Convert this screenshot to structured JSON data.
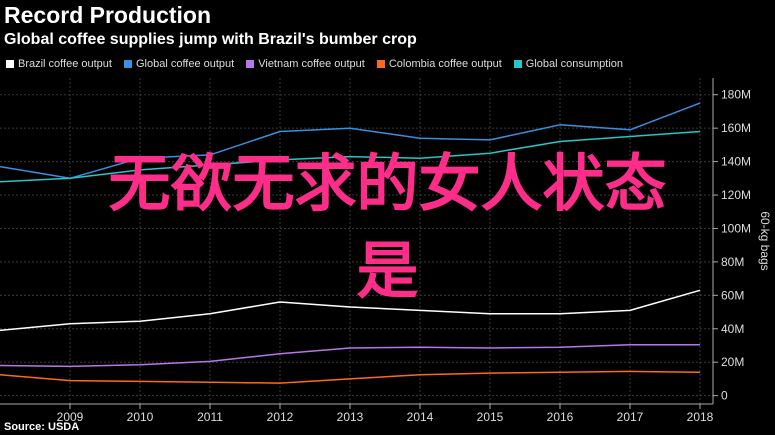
{
  "header": {
    "title": "Record Production",
    "subtitle": "Global coffee supplies jump with Brazil's bumber crop"
  },
  "footer": {
    "source": "Source: USDA"
  },
  "overlay": {
    "line1": "无欲无求的女人状态",
    "line2": "是"
  },
  "chart_data": {
    "type": "line",
    "x": [
      "2008",
      "2009",
      "2010",
      "2011",
      "2012",
      "2013",
      "2014",
      "2015",
      "2016",
      "2017",
      "2018"
    ],
    "ylabel": "60-kg bags",
    "ylim": [
      -5,
      190
    ],
    "yticks": [
      0,
      20,
      40,
      60,
      80,
      100,
      120,
      140,
      160,
      180
    ],
    "ytick_labels": [
      "0",
      "20M",
      "40M",
      "60M",
      "80M",
      "100M",
      "120M",
      "140M",
      "160M",
      "180M"
    ],
    "xtick_labels": [
      "2009",
      "2010",
      "2011",
      "2012",
      "2013",
      "2014",
      "2015",
      "2016",
      "2017",
      "2018"
    ],
    "legend_position": "top-left",
    "grid": true,
    "series": [
      {
        "name": "Brazil coffee output",
        "color": "#ffffff",
        "values": [
          39,
          43,
          44.5,
          49,
          56,
          53,
          51,
          49,
          49,
          51,
          63
        ]
      },
      {
        "name": "Global coffee output",
        "color": "#3a8fe0",
        "values": [
          137,
          130,
          142,
          144,
          158,
          160,
          154,
          153,
          162,
          159,
          175
        ]
      },
      {
        "name": "Vietnam coffee output",
        "color": "#b877e8",
        "values": [
          18,
          17.5,
          18.5,
          20.5,
          25,
          28.5,
          29,
          28.5,
          29,
          30.5,
          30.5
        ]
      },
      {
        "name": "Colombia coffee output",
        "color": "#ff6a1a",
        "values": [
          12.5,
          9,
          8.5,
          8,
          7.5,
          10,
          12.5,
          13.5,
          14,
          14.5,
          14
        ]
      },
      {
        "name": "Global consumption",
        "color": "#27c6c8",
        "values": [
          128,
          130,
          135,
          138,
          141,
          143,
          142,
          145,
          152,
          155,
          158
        ]
      }
    ]
  }
}
